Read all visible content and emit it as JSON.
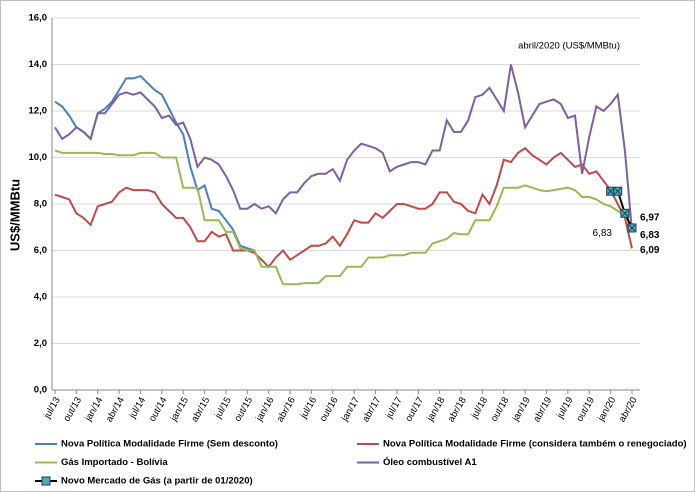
{
  "chart_data": {
    "type": "line",
    "ylabel": "US$/MMBtu",
    "annotation": "abril/2020 (US$/MMBtu)",
    "categories": [
      "jul/13",
      null,
      null,
      "out/13",
      null,
      null,
      "jan/14",
      null,
      null,
      "abr/14",
      null,
      null,
      "jul/14",
      null,
      null,
      "out/14",
      null,
      null,
      "jan/15",
      null,
      null,
      "abr/15",
      null,
      null,
      "jul/15",
      null,
      null,
      "out/15",
      null,
      null,
      "jan/16",
      null,
      null,
      "abr/16",
      null,
      null,
      "jul/16",
      null,
      null,
      "out/16",
      null,
      null,
      "jan/17",
      null,
      null,
      "abr/17",
      null,
      null,
      "jul/17",
      null,
      null,
      "out/17",
      null,
      null,
      "jan/18",
      null,
      null,
      "abr/18",
      null,
      null,
      "jul/18",
      null,
      null,
      "out/18",
      null,
      null,
      "jan/19",
      null,
      null,
      "abr/19",
      null,
      null,
      "jul/19",
      null,
      null,
      "out/19",
      null,
      null,
      "jan/20",
      null,
      null,
      "abr/20"
    ],
    "ylim": [
      0,
      16
    ],
    "yticks": [
      {
        "value": 0,
        "label": "0,0"
      },
      {
        "value": 2,
        "label": "2,0"
      },
      {
        "value": 4,
        "label": "4,0"
      },
      {
        "value": 6,
        "label": "6,0"
      },
      {
        "value": 8,
        "label": "8,0"
      },
      {
        "value": 10,
        "label": "10,0"
      },
      {
        "value": 12,
        "label": "12,0"
      },
      {
        "value": 14,
        "label": "14,0"
      },
      {
        "value": 16,
        "label": "16,0"
      }
    ],
    "grid": true,
    "legend": "bottom",
    "series": [
      {
        "name": "Nova Política Modalidade Firme (Sem desconto)",
        "color": "#4a7ebb",
        "values": [
          12.4,
          12.2,
          11.8,
          11.3,
          11.1,
          10.8,
          11.9,
          12.1,
          12.4,
          12.9,
          13.4,
          13.4,
          13.5,
          13.2,
          12.9,
          12.7,
          12.1,
          11.5,
          11.0,
          9.6,
          8.6,
          8.8,
          7.8,
          7.7,
          7.3,
          6.9,
          6.2,
          6.1,
          6.0,
          null,
          null,
          null,
          null,
          null,
          null,
          null,
          null,
          null,
          null,
          null,
          null,
          null,
          null,
          null,
          null,
          null,
          null,
          null,
          null,
          null,
          null,
          null,
          null,
          null,
          null,
          null,
          null,
          null,
          null,
          null,
          null,
          null,
          null,
          null,
          null,
          null,
          null,
          null,
          null,
          null,
          null,
          null,
          null,
          null,
          null,
          null,
          null,
          null,
          null,
          null,
          null,
          null
        ]
      },
      {
        "name": "Nova Política Modalidade Firme (considera também o renegociado)",
        "color": "#be4b48",
        "values": [
          8.4,
          8.3,
          8.2,
          7.6,
          7.4,
          7.1,
          7.9,
          8.0,
          8.1,
          8.5,
          8.7,
          8.6,
          8.6,
          8.6,
          8.5,
          8.0,
          7.7,
          7.4,
          7.4,
          7.0,
          6.4,
          6.4,
          6.8,
          6.6,
          6.7,
          6.0,
          6.0,
          6.0,
          5.9,
          5.6,
          5.3,
          5.7,
          6.0,
          5.6,
          5.8,
          6.0,
          6.2,
          6.2,
          6.3,
          6.6,
          6.2,
          6.7,
          7.3,
          7.2,
          7.2,
          7.6,
          7.4,
          7.7,
          8.0,
          8.0,
          7.9,
          7.8,
          7.8,
          8.0,
          8.5,
          8.5,
          8.1,
          8.0,
          7.7,
          7.6,
          8.4,
          8.0,
          8.8,
          9.9,
          9.8,
          10.2,
          10.4,
          10.1,
          9.9,
          9.7,
          10.0,
          10.2,
          9.9,
          9.6,
          9.7,
          9.3,
          9.4,
          9.0,
          8.6,
          8.0,
          7.4,
          6.09
        ],
        "value_labels": [
          null,
          null,
          null,
          null,
          null,
          null,
          null,
          null,
          null,
          null,
          null,
          null,
          null,
          null,
          null,
          null,
          null,
          null,
          null,
          null,
          null,
          null,
          null,
          null,
          null,
          null,
          null,
          null,
          null,
          null,
          null,
          null,
          null,
          null,
          null,
          null,
          null,
          null,
          null,
          null,
          null,
          null,
          null,
          null,
          null,
          null,
          null,
          null,
          null,
          null,
          null,
          null,
          null,
          null,
          null,
          null,
          null,
          null,
          null,
          null,
          null,
          null,
          null,
          null,
          null,
          null,
          null,
          null,
          null,
          null,
          null,
          null,
          null,
          null,
          null,
          null,
          null,
          null,
          null,
          null,
          null,
          "6,09"
        ]
      },
      {
        "name": "Gás Importado - Bolívia",
        "color": "#98b954",
        "values": [
          10.3,
          10.2,
          10.2,
          10.2,
          10.2,
          10.2,
          10.2,
          10.15,
          10.15,
          10.1,
          10.1,
          10.1,
          10.2,
          10.2,
          10.2,
          10.0,
          10.0,
          10.0,
          8.7,
          8.7,
          8.7,
          7.3,
          7.3,
          7.3,
          6.8,
          6.8,
          6.1,
          6.0,
          6.0,
          5.3,
          5.3,
          5.3,
          4.55,
          4.55,
          4.55,
          4.6,
          4.6,
          4.6,
          4.9,
          4.9,
          4.9,
          5.3,
          5.3,
          5.3,
          5.7,
          5.7,
          5.7,
          5.8,
          5.8,
          5.8,
          5.9,
          5.9,
          5.9,
          6.3,
          6.4,
          6.5,
          6.75,
          6.7,
          6.7,
          7.3,
          7.3,
          7.3,
          7.9,
          8.7,
          8.7,
          8.7,
          8.8,
          8.7,
          8.6,
          8.55,
          8.6,
          8.65,
          8.7,
          8.6,
          8.3,
          8.3,
          8.2,
          8.0,
          7.9,
          7.7,
          7.5,
          6.83
        ],
        "value_labels": [
          null,
          null,
          null,
          null,
          null,
          null,
          null,
          null,
          null,
          null,
          null,
          null,
          null,
          null,
          null,
          null,
          null,
          null,
          null,
          null,
          null,
          null,
          null,
          null,
          null,
          null,
          null,
          null,
          null,
          null,
          null,
          null,
          null,
          null,
          null,
          null,
          null,
          null,
          null,
          null,
          null,
          null,
          null,
          null,
          null,
          null,
          null,
          null,
          null,
          null,
          null,
          null,
          null,
          null,
          null,
          null,
          null,
          null,
          null,
          null,
          null,
          null,
          null,
          null,
          null,
          null,
          null,
          null,
          null,
          null,
          null,
          null,
          null,
          null,
          null,
          null,
          null,
          null,
          null,
          null,
          null,
          "6,83"
        ]
      },
      {
        "name": "Óleo combustível A1",
        "color": "#7d60a0",
        "values": [
          11.3,
          10.8,
          11.0,
          11.3,
          11.1,
          10.8,
          11.9,
          11.9,
          12.3,
          12.7,
          12.8,
          12.7,
          12.8,
          12.5,
          12.2,
          11.7,
          11.8,
          11.4,
          11.5,
          10.8,
          9.6,
          10.0,
          9.9,
          9.7,
          9.2,
          8.6,
          7.8,
          7.8,
          8.0,
          7.8,
          7.9,
          7.6,
          8.2,
          8.5,
          8.5,
          8.9,
          9.2,
          9.3,
          9.3,
          9.5,
          9.0,
          9.9,
          10.3,
          10.6,
          10.5,
          10.4,
          10.2,
          9.4,
          9.6,
          9.7,
          9.8,
          9.8,
          9.7,
          10.3,
          10.3,
          11.6,
          11.1,
          11.1,
          11.6,
          12.6,
          12.7,
          13.0,
          12.5,
          12.0,
          14.0,
          12.8,
          11.3,
          11.8,
          12.3,
          12.4,
          12.5,
          12.3,
          11.7,
          11.8,
          9.3,
          10.9,
          12.2,
          12.0,
          12.3,
          12.7,
          10.3,
          6.83
        ],
        "value_labels": [
          null,
          null,
          null,
          null,
          null,
          null,
          null,
          null,
          null,
          null,
          null,
          null,
          null,
          null,
          null,
          null,
          null,
          null,
          null,
          null,
          null,
          null,
          null,
          null,
          null,
          null,
          null,
          null,
          null,
          null,
          null,
          null,
          null,
          null,
          null,
          null,
          null,
          null,
          null,
          null,
          null,
          null,
          null,
          null,
          null,
          null,
          null,
          null,
          null,
          null,
          null,
          null,
          null,
          null,
          null,
          null,
          null,
          null,
          null,
          null,
          null,
          null,
          null,
          null,
          null,
          null,
          null,
          null,
          null,
          null,
          null,
          null,
          null,
          null,
          null,
          null,
          null,
          null,
          null,
          null,
          null,
          "6,83"
        ]
      },
      {
        "name": "Novo Mercado de Gás (a partir de 01/2020)",
        "color": "#000000",
        "marker": "square",
        "values": [
          null,
          null,
          null,
          null,
          null,
          null,
          null,
          null,
          null,
          null,
          null,
          null,
          null,
          null,
          null,
          null,
          null,
          null,
          null,
          null,
          null,
          null,
          null,
          null,
          null,
          null,
          null,
          null,
          null,
          null,
          null,
          null,
          null,
          null,
          null,
          null,
          null,
          null,
          null,
          null,
          null,
          null,
          null,
          null,
          null,
          null,
          null,
          null,
          null,
          null,
          null,
          null,
          null,
          null,
          null,
          null,
          null,
          null,
          null,
          null,
          null,
          null,
          null,
          null,
          null,
          null,
          null,
          null,
          null,
          null,
          null,
          null,
          null,
          null,
          null,
          null,
          null,
          null,
          8.55,
          8.55,
          7.6,
          6.97
        ],
        "value_labels": [
          null,
          null,
          null,
          null,
          null,
          null,
          null,
          null,
          null,
          null,
          null,
          null,
          null,
          null,
          null,
          null,
          null,
          null,
          null,
          null,
          null,
          null,
          null,
          null,
          null,
          null,
          null,
          null,
          null,
          null,
          null,
          null,
          null,
          null,
          null,
          null,
          null,
          null,
          null,
          null,
          null,
          null,
          null,
          null,
          null,
          null,
          null,
          null,
          null,
          null,
          null,
          null,
          null,
          null,
          null,
          null,
          null,
          null,
          null,
          null,
          null,
          null,
          null,
          null,
          null,
          null,
          null,
          null,
          null,
          null,
          null,
          null,
          null,
          null,
          null,
          null,
          null,
          null,
          null,
          null,
          null,
          "6,97"
        ]
      }
    ]
  }
}
